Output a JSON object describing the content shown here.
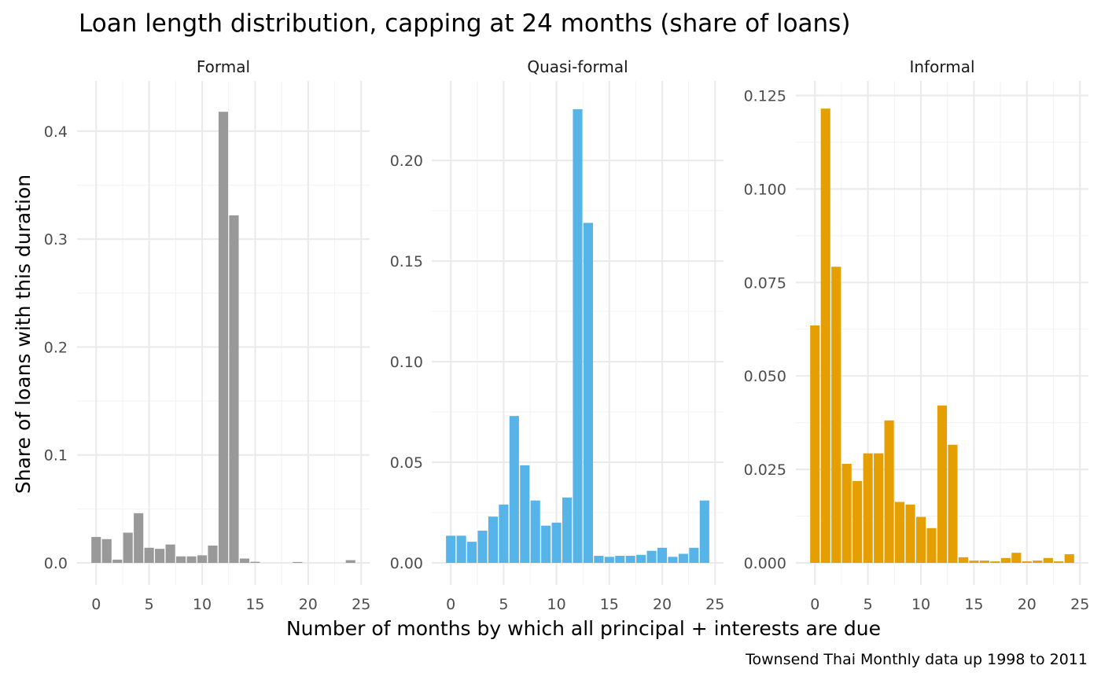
{
  "chart_data": {
    "type": "bar",
    "title": "Loan length distribution, capping at 24 months (share of loans)",
    "xlabel": "Number of months by which all principal + interests are due",
    "ylabel": "Share of loans with this duration",
    "caption": "Townsend Thai Monthly data up 1998 to 2011",
    "grid": true,
    "x_ticks": [
      0,
      5,
      10,
      15,
      20,
      25
    ],
    "panels": [
      {
        "name": "Formal",
        "color": "#999999",
        "ylim": [
          0,
          0.44
        ],
        "y_ticks": [
          0.0,
          0.1,
          0.2,
          0.3,
          0.4
        ],
        "y_tick_labels": [
          "0.0",
          "0.1",
          "0.2",
          "0.3",
          "0.4"
        ],
        "x": [
          0,
          1,
          2,
          3,
          4,
          5,
          6,
          7,
          8,
          9,
          10,
          11,
          12,
          13,
          14,
          15,
          16,
          17,
          18,
          19,
          20,
          21,
          22,
          23,
          24
        ],
        "values": [
          0.024,
          0.022,
          0.003,
          0.028,
          0.046,
          0.014,
          0.013,
          0.017,
          0.006,
          0.006,
          0.007,
          0.016,
          0.418,
          0.322,
          0.004,
          0.001,
          0,
          0,
          0,
          0.0008,
          0,
          0,
          0,
          0,
          0.0025
        ]
      },
      {
        "name": "Quasi-formal",
        "color": "#56B4E9",
        "ylim": [
          0,
          0.236
        ],
        "y_ticks": [
          0.0,
          0.05,
          0.1,
          0.15,
          0.2
        ],
        "y_tick_labels": [
          "0.00",
          "0.05",
          "0.10",
          "0.15",
          "0.20"
        ],
        "x": [
          0,
          1,
          2,
          3,
          4,
          5,
          6,
          7,
          8,
          9,
          10,
          11,
          12,
          13,
          14,
          15,
          16,
          17,
          18,
          19,
          20,
          21,
          22,
          23,
          24
        ],
        "values": [
          0.0135,
          0.0135,
          0.0105,
          0.016,
          0.023,
          0.029,
          0.073,
          0.0485,
          0.031,
          0.0185,
          0.02,
          0.0325,
          0.2255,
          0.169,
          0.0035,
          0.003,
          0.0035,
          0.0035,
          0.004,
          0.006,
          0.0075,
          0.003,
          0.0045,
          0.0075,
          0.031
        ]
      },
      {
        "name": "Informal",
        "color": "#E69F00",
        "ylim": [
          0,
          0.127
        ],
        "y_ticks": [
          0.0,
          0.025,
          0.05,
          0.075,
          0.1,
          0.125
        ],
        "y_tick_labels": [
          "0.000",
          "0.025",
          "0.050",
          "0.075",
          "0.100",
          "0.125"
        ],
        "x": [
          0,
          1,
          2,
          3,
          4,
          5,
          6,
          7,
          8,
          9,
          10,
          11,
          12,
          13,
          14,
          15,
          16,
          17,
          18,
          19,
          20,
          21,
          22,
          23,
          24
        ],
        "values": [
          0.0635,
          0.1215,
          0.0792,
          0.0265,
          0.0219,
          0.0293,
          0.0293,
          0.0381,
          0.0163,
          0.0156,
          0.0123,
          0.0093,
          0.0421,
          0.0316,
          0.0015,
          0.0006,
          0.0006,
          0.0004,
          0.0013,
          0.0027,
          0.0004,
          0.0006,
          0.0013,
          0.0004,
          0.0023
        ]
      }
    ]
  }
}
